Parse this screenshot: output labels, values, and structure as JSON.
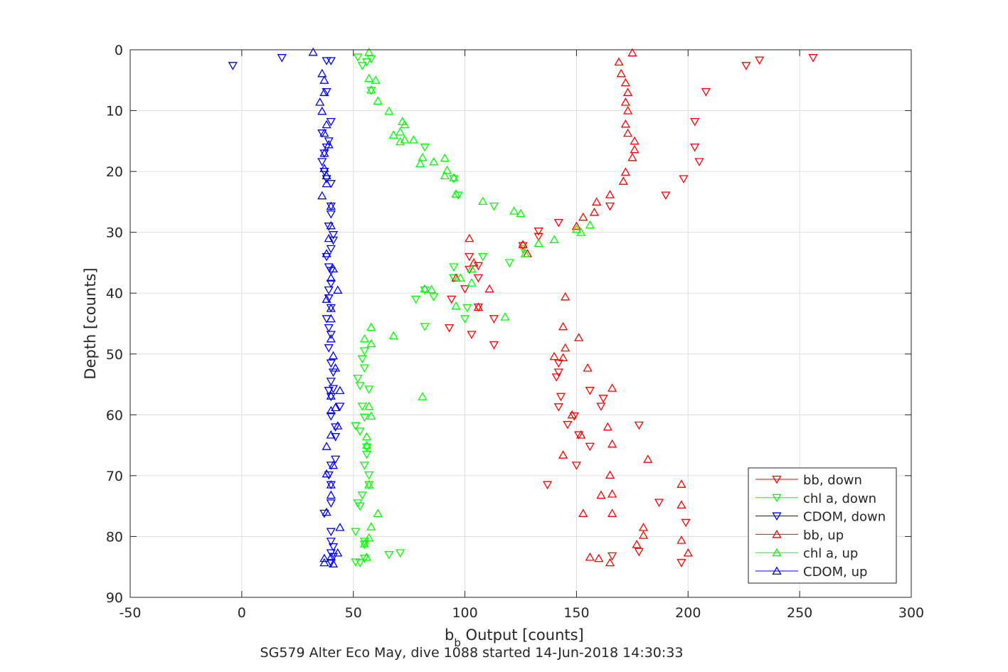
{
  "chart_data": {
    "type": "scatter",
    "title": "",
    "xlabel_main": "b",
    "xlabel_sub": "b",
    "xlabel_rest": " Output [counts]",
    "subtitle": "SG579 Alter Eco May, dive 1088 started 14-Jun-2018 14:30:33",
    "ylabel": "Depth [counts]",
    "xlim": [
      -50,
      300
    ],
    "ylim": [
      0,
      90
    ],
    "y_reversed": true,
    "grid": true,
    "legend_position": "bottom-right",
    "xticks": [
      -50,
      0,
      50,
      100,
      150,
      200,
      250,
      300
    ],
    "yticks": [
      0,
      10,
      20,
      30,
      40,
      50,
      60,
      70,
      80,
      90
    ],
    "series": [
      {
        "name": "bb, down",
        "color": "#ff0000",
        "marker": "triangle-down",
        "points": [
          [
            256,
            1.3
          ],
          [
            232,
            1.7
          ],
          [
            226,
            2.6
          ],
          [
            208,
            6.9
          ],
          [
            203,
            11.8
          ],
          [
            203,
            16
          ],
          [
            205,
            18.4
          ],
          [
            198,
            21.2
          ],
          [
            190,
            23.9
          ],
          [
            165,
            25.7
          ],
          [
            142,
            28.4
          ],
          [
            133,
            29.8
          ],
          [
            133,
            30.7
          ],
          [
            126,
            32.2
          ],
          [
            102,
            34
          ],
          [
            106,
            35.5
          ],
          [
            102,
            36.1
          ],
          [
            95,
            37.5
          ],
          [
            106,
            37.5
          ],
          [
            100,
            39.3
          ],
          [
            94,
            41
          ],
          [
            106,
            42.3
          ],
          [
            113,
            44.2
          ],
          [
            93,
            45.7
          ],
          [
            103,
            46.8
          ],
          [
            113,
            48.5
          ],
          [
            142,
            51.5
          ],
          [
            142,
            53
          ],
          [
            141,
            53.8
          ],
          [
            156,
            56
          ],
          [
            143,
            57
          ],
          [
            162,
            57.3
          ],
          [
            161,
            58.6
          ],
          [
            142,
            58.7
          ],
          [
            149,
            60.2
          ],
          [
            146,
            61.6
          ],
          [
            178,
            61.7
          ],
          [
            151,
            63.3
          ],
          [
            156,
            65.2
          ],
          [
            150,
            68.3
          ],
          [
            137,
            71.5
          ],
          [
            187,
            74.4
          ],
          [
            199,
            77.7
          ],
          [
            178,
            82.5
          ],
          [
            166,
            83.2
          ],
          [
            197,
            84.3
          ]
        ]
      },
      {
        "name": "chl a, down",
        "color": "#00ff00",
        "marker": "triangle-down",
        "points": [
          [
            52,
            1.2
          ],
          [
            58,
            1.5
          ],
          [
            56,
            2
          ],
          [
            54,
            2.6
          ],
          [
            58,
            6.7
          ],
          [
            82,
            16
          ],
          [
            95,
            21.2
          ],
          [
            97,
            23.9
          ],
          [
            113,
            25.7
          ],
          [
            126,
            32.7
          ],
          [
            108,
            34
          ],
          [
            120,
            35
          ],
          [
            95,
            35.7
          ],
          [
            95,
            37.5
          ],
          [
            82,
            39.5
          ],
          [
            78,
            41
          ],
          [
            86,
            40.6
          ],
          [
            101,
            42.4
          ],
          [
            100,
            44.2
          ],
          [
            82,
            45.5
          ],
          [
            55,
            49.5
          ],
          [
            54,
            50.8
          ],
          [
            55,
            52.3
          ],
          [
            52,
            54
          ],
          [
            53,
            55.2
          ],
          [
            57,
            55.8
          ],
          [
            54,
            58.6
          ],
          [
            55,
            60.4
          ],
          [
            51,
            61.8
          ],
          [
            53,
            62.7
          ],
          [
            56,
            65.3
          ],
          [
            56,
            66.5
          ],
          [
            55,
            68.3
          ],
          [
            57,
            69.9
          ],
          [
            57,
            71.5
          ],
          [
            54,
            73.2
          ],
          [
            52,
            74.5
          ],
          [
            53,
            75
          ],
          [
            51,
            79.2
          ],
          [
            55,
            80.8
          ],
          [
            55,
            81.3
          ],
          [
            66,
            83
          ],
          [
            71,
            82.7
          ],
          [
            55,
            83.6
          ],
          [
            51,
            84.2
          ],
          [
            53,
            84.3
          ]
        ]
      },
      {
        "name": "CDOM, down",
        "color": "#0000ff",
        "marker": "triangle-down",
        "points": [
          [
            -4,
            2.6
          ],
          [
            18,
            1.3
          ],
          [
            38,
            1.8
          ],
          [
            40,
            1.8
          ],
          [
            38,
            6.9
          ],
          [
            40,
            11.8
          ],
          [
            36,
            13.7
          ],
          [
            39,
            15
          ],
          [
            38,
            16
          ],
          [
            37,
            17
          ],
          [
            36,
            18.4
          ],
          [
            37,
            20
          ],
          [
            38,
            21.2
          ],
          [
            40,
            22
          ],
          [
            40,
            25.7
          ],
          [
            40,
            27
          ],
          [
            39,
            29
          ],
          [
            41,
            30.4
          ],
          [
            41,
            31.3
          ],
          [
            40,
            32.7
          ],
          [
            38,
            34
          ],
          [
            39,
            35.7
          ],
          [
            40,
            36.3
          ],
          [
            40,
            38.4
          ],
          [
            39,
            39.5
          ],
          [
            39,
            40.8
          ],
          [
            40,
            42.4
          ],
          [
            38,
            44.2
          ],
          [
            39,
            45.7
          ],
          [
            40,
            46.8
          ],
          [
            39,
            49
          ],
          [
            40,
            51.5
          ],
          [
            41,
            53
          ],
          [
            40,
            54.5
          ],
          [
            41,
            55.7
          ],
          [
            39,
            56
          ],
          [
            40,
            57
          ],
          [
            44,
            58.6
          ],
          [
            40,
            60.2
          ],
          [
            42,
            62
          ],
          [
            42,
            63.6
          ],
          [
            42,
            67.3
          ],
          [
            40,
            68.3
          ],
          [
            39,
            69.9
          ],
          [
            40,
            71.5
          ],
          [
            40,
            74.5
          ],
          [
            37,
            76.2
          ],
          [
            40,
            79.2
          ],
          [
            40,
            80.8
          ],
          [
            41,
            81.7
          ],
          [
            40,
            82.7
          ],
          [
            41,
            83.3
          ],
          [
            40,
            84.3
          ]
        ]
      },
      {
        "name": "bb, up",
        "color": "#ff0000",
        "marker": "triangle-up",
        "points": [
          [
            175,
            0.5
          ],
          [
            169,
            2
          ],
          [
            170,
            3.9
          ],
          [
            172,
            5.4
          ],
          [
            173,
            7
          ],
          [
            172,
            8.6
          ],
          [
            173,
            10
          ],
          [
            172,
            12.2
          ],
          [
            173,
            13.7
          ],
          [
            176,
            15
          ],
          [
            176,
            16.4
          ],
          [
            175,
            17.7
          ],
          [
            172,
            20.1
          ],
          [
            171,
            21.6
          ],
          [
            165,
            23.8
          ],
          [
            159,
            25
          ],
          [
            158,
            26.7
          ],
          [
            153,
            27.5
          ],
          [
            150,
            29
          ],
          [
            126,
            32
          ],
          [
            128,
            33.5
          ],
          [
            102,
            31
          ],
          [
            104,
            35
          ],
          [
            96,
            37.5
          ],
          [
            111,
            39.3
          ],
          [
            106,
            42.3
          ],
          [
            145,
            40.6
          ],
          [
            144,
            45.5
          ],
          [
            151,
            47.3
          ],
          [
            145,
            49
          ],
          [
            140,
            50.4
          ],
          [
            144,
            50.6
          ],
          [
            155,
            52.3
          ],
          [
            166,
            55.6
          ],
          [
            148,
            60
          ],
          [
            164,
            62
          ],
          [
            152,
            63.3
          ],
          [
            166,
            64.8
          ],
          [
            182,
            67.3
          ],
          [
            144,
            66.6
          ],
          [
            165,
            69.9
          ],
          [
            197,
            71.4
          ],
          [
            166,
            73
          ],
          [
            161,
            73.2
          ],
          [
            197,
            74.8
          ],
          [
            153,
            76.2
          ],
          [
            166,
            76.2
          ],
          [
            180,
            78.5
          ],
          [
            180,
            79.8
          ],
          [
            177,
            81.3
          ],
          [
            197,
            80.6
          ],
          [
            200,
            82.7
          ],
          [
            156,
            83.4
          ],
          [
            165,
            84.3
          ],
          [
            160,
            83.6
          ]
        ]
      },
      {
        "name": "chl a, up",
        "color": "#00ff00",
        "marker": "triangle-up",
        "points": [
          [
            57,
            0.4
          ],
          [
            57,
            4.7
          ],
          [
            60,
            5
          ],
          [
            58,
            6.6
          ],
          [
            61,
            8.4
          ],
          [
            66,
            10.1
          ],
          [
            72,
            11.8
          ],
          [
            73,
            12.3
          ],
          [
            71,
            13.5
          ],
          [
            68,
            14
          ],
          [
            73,
            14.8
          ],
          [
            71,
            15.1
          ],
          [
            77,
            14.8
          ],
          [
            81,
            17.7
          ],
          [
            80,
            18.7
          ],
          [
            86,
            18.4
          ],
          [
            91,
            17.8
          ],
          [
            92,
            19.8
          ],
          [
            91,
            20.7
          ],
          [
            95,
            21
          ],
          [
            96,
            23.7
          ],
          [
            108,
            24.9
          ],
          [
            122,
            26.5
          ],
          [
            125,
            26.9
          ],
          [
            150,
            29.5
          ],
          [
            152,
            30
          ],
          [
            133,
            31.8
          ],
          [
            127,
            33.5
          ],
          [
            140,
            31.2
          ],
          [
            156,
            28.8
          ],
          [
            103,
            36
          ],
          [
            98,
            37.5
          ],
          [
            82,
            39.3
          ],
          [
            85,
            39.4
          ],
          [
            96,
            42.1
          ],
          [
            103,
            38.3
          ],
          [
            118,
            43.9
          ],
          [
            58,
            45.6
          ],
          [
            55,
            47.5
          ],
          [
            58,
            48.3
          ],
          [
            68,
            47
          ],
          [
            81,
            57
          ],
          [
            57,
            58.6
          ],
          [
            58,
            60.2
          ],
          [
            56,
            63.6
          ],
          [
            56,
            65
          ],
          [
            57,
            71.5
          ],
          [
            61,
            76.2
          ],
          [
            58,
            78.4
          ],
          [
            57,
            80.2
          ],
          [
            55,
            81.2
          ],
          [
            56,
            83.4
          ]
        ]
      },
      {
        "name": "CDOM, up",
        "color": "#0000ff",
        "marker": "triangle-up",
        "points": [
          [
            32,
            0.4
          ],
          [
            36,
            3.9
          ],
          [
            37,
            5
          ],
          [
            37,
            7
          ],
          [
            35,
            8.6
          ],
          [
            36,
            10.1
          ],
          [
            38,
            12.3
          ],
          [
            37,
            13.7
          ],
          [
            39,
            15.6
          ],
          [
            37,
            17
          ],
          [
            37,
            19.5
          ],
          [
            38,
            20.7
          ],
          [
            38,
            22
          ],
          [
            36,
            24
          ],
          [
            40,
            25.7
          ],
          [
            40,
            28.9
          ],
          [
            39,
            31
          ],
          [
            38,
            33.5
          ],
          [
            41,
            36
          ],
          [
            40,
            37.5
          ],
          [
            43,
            39.5
          ],
          [
            38,
            41
          ],
          [
            40,
            42.5
          ],
          [
            40,
            44.2
          ],
          [
            40,
            47.5
          ],
          [
            41,
            50.3
          ],
          [
            42,
            52.3
          ],
          [
            44,
            56
          ],
          [
            40,
            56.9
          ],
          [
            42,
            58.8
          ],
          [
            40,
            59.3
          ],
          [
            40,
            63.3
          ],
          [
            43,
            61.8
          ],
          [
            38,
            65.2
          ],
          [
            41,
            68.3
          ],
          [
            38,
            69.7
          ],
          [
            40,
            71.5
          ],
          [
            40,
            73.2
          ],
          [
            38,
            76
          ],
          [
            44,
            78.5
          ],
          [
            40,
            83.4
          ],
          [
            43,
            82.7
          ],
          [
            37,
            83.6
          ],
          [
            37,
            84.3
          ],
          [
            41,
            84.5
          ]
        ]
      }
    ]
  }
}
